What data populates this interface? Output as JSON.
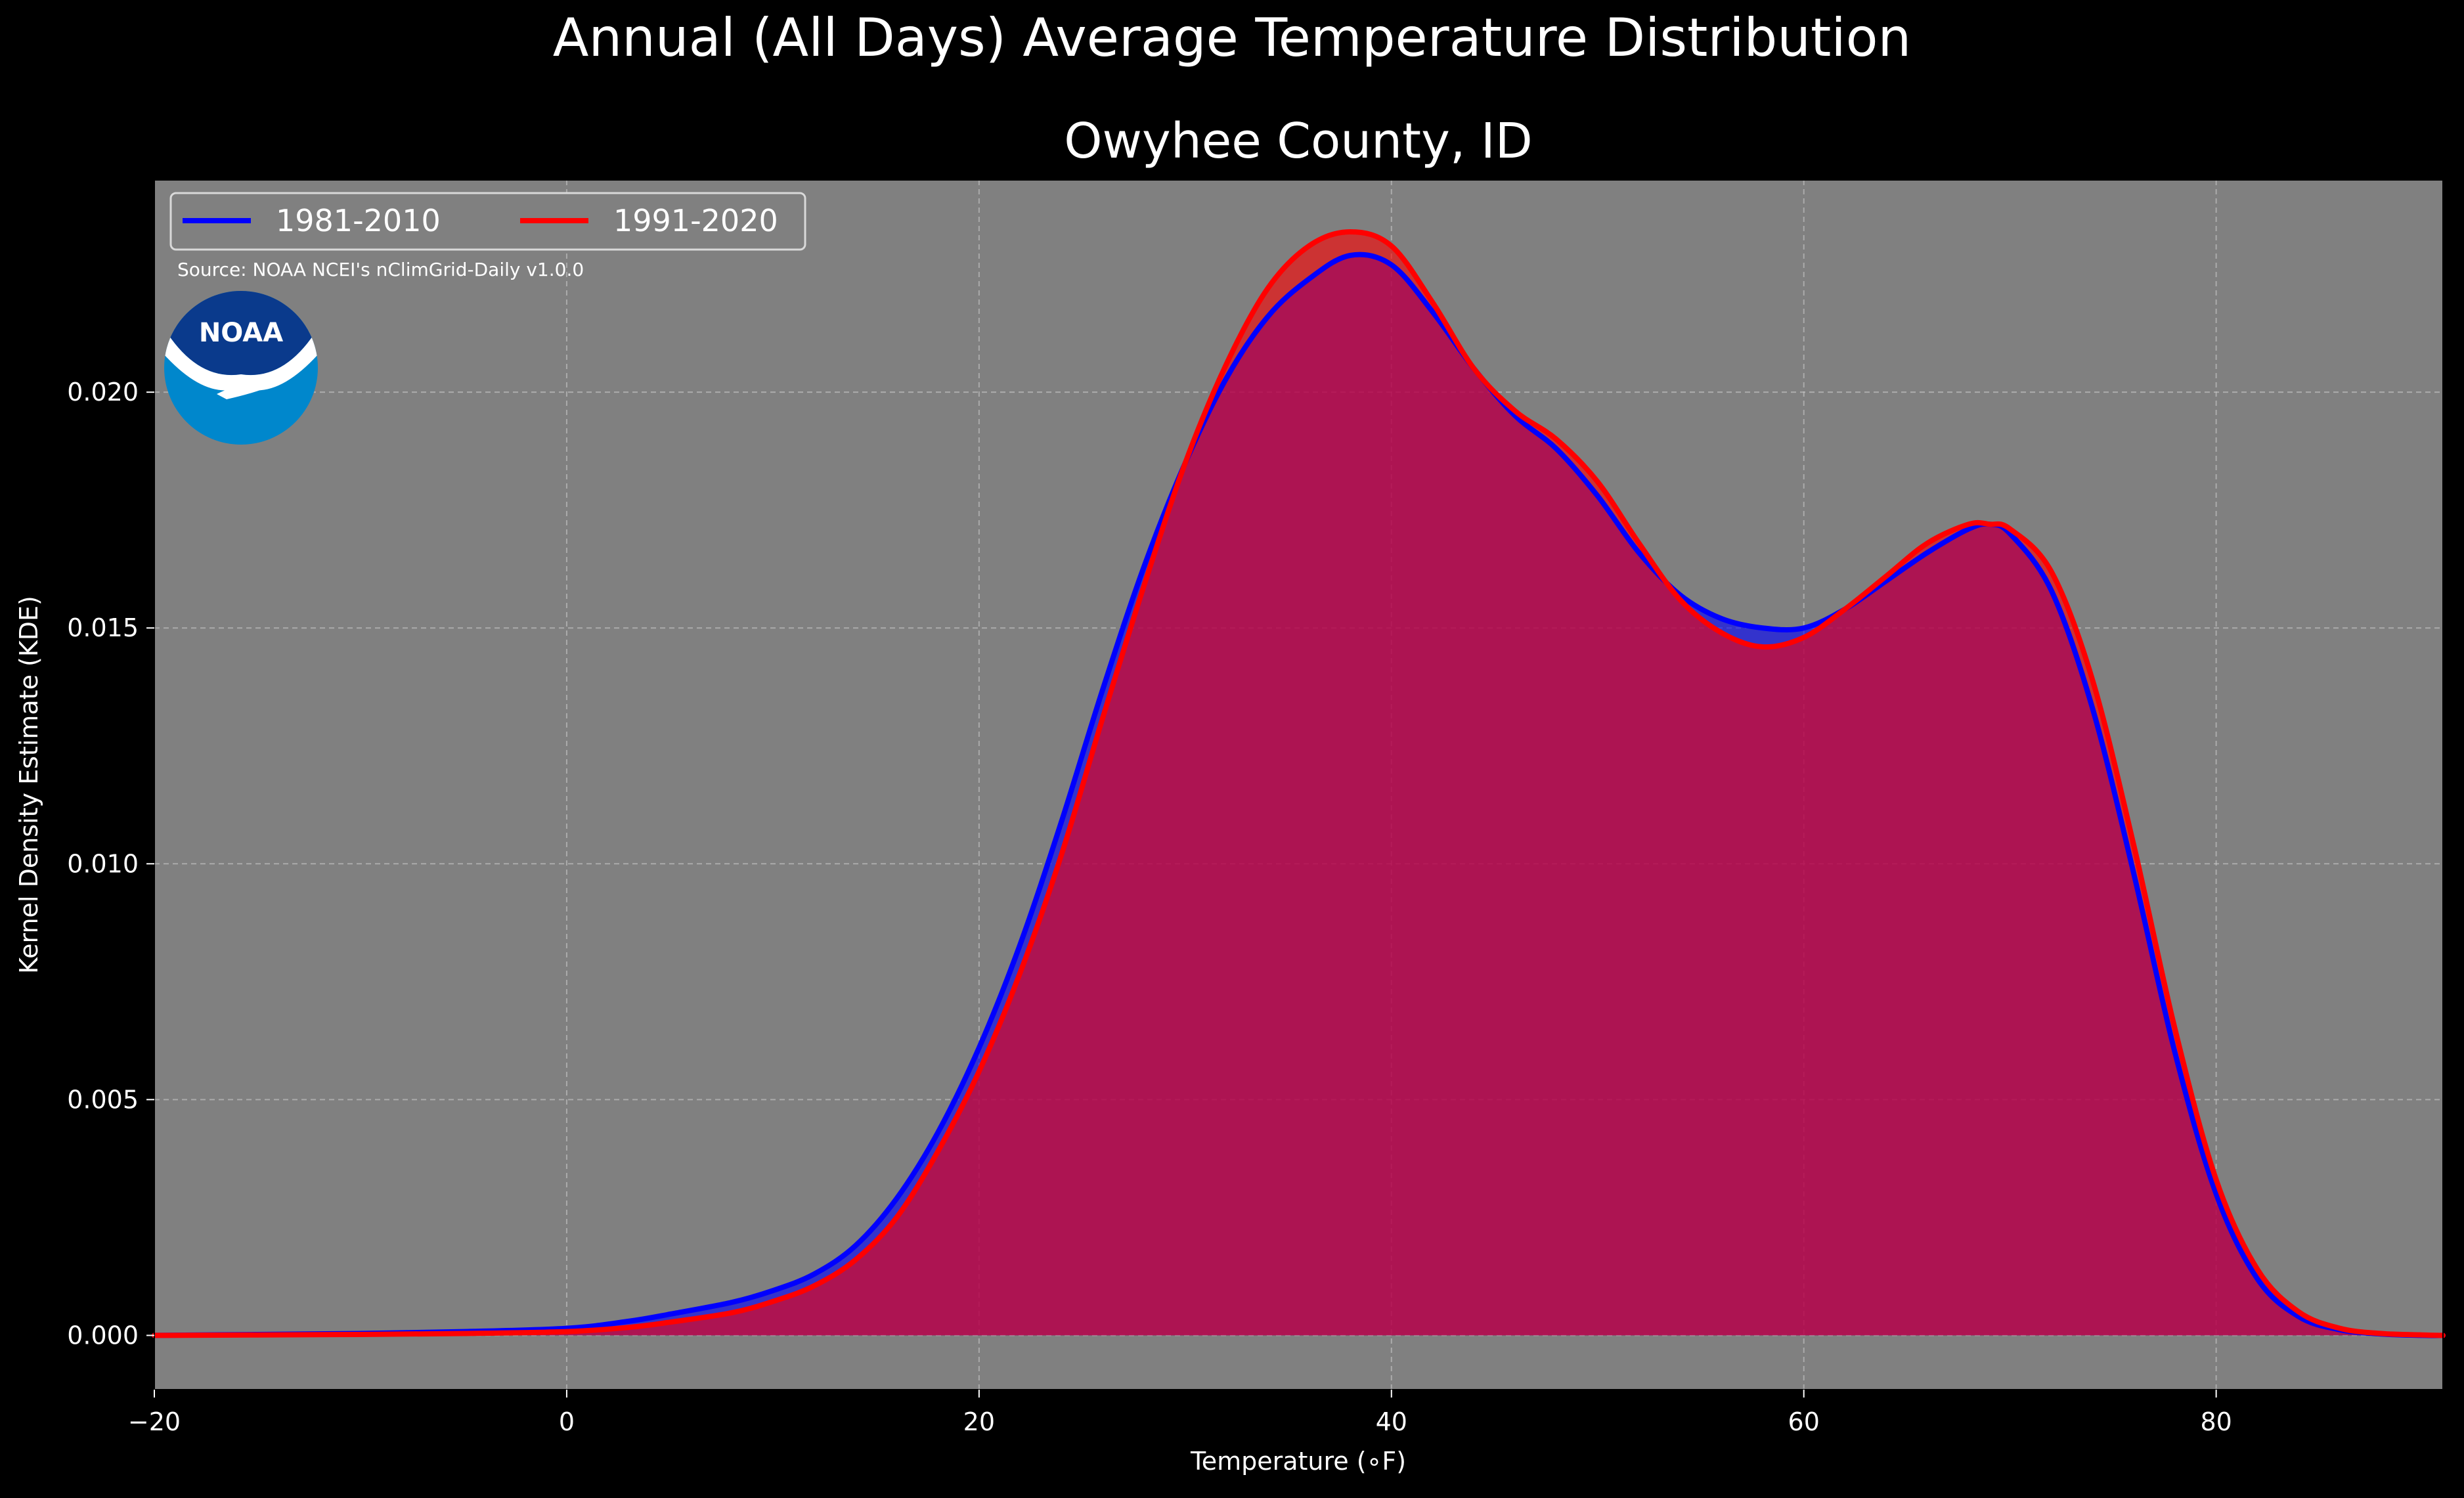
{
  "chart_data": {
    "type": "area",
    "suptitle": "Annual (All Days) Average Temperature Distribution",
    "title": "Owyhee County, ID",
    "xlabel": "Temperature (∘F)",
    "ylabel": "Kernel Density Estimate (KDE)",
    "source_note": "Source: NOAA NCEI's nClimGrid-Daily v1.0.0",
    "logo_text": "NOAA",
    "xlim": [
      -20,
      91
    ],
    "ylim": [
      -0.00115,
      0.0245
    ],
    "xticks": [
      -20,
      0,
      20,
      40,
      60,
      80
    ],
    "xtick_labels": [
      "−20",
      "0",
      "20",
      "40",
      "60",
      "80"
    ],
    "yticks": [
      0.0,
      0.005,
      0.01,
      0.015,
      0.02
    ],
    "ytick_labels": [
      "0.000",
      "0.005",
      "0.010",
      "0.015",
      "0.020"
    ],
    "grid": true,
    "legend_position": "top-left",
    "colors": {
      "background": "#000000",
      "plot_background": "#808080",
      "series_1981": "#0000ff",
      "series_1991": "#ff0000"
    },
    "series": [
      {
        "name": "1981-2010",
        "color": "#0000ff",
        "x": [
          -20,
          -15,
          -10,
          -5,
          0,
          3,
          5,
          8,
          10,
          12,
          14,
          16,
          18,
          20,
          22,
          24,
          26,
          28,
          30,
          32,
          34,
          36,
          38,
          40,
          42,
          44,
          46,
          48,
          50,
          52,
          54,
          56,
          58,
          60,
          62,
          64,
          66,
          68,
          69,
          70,
          72,
          74,
          76,
          78,
          80,
          82,
          84,
          86,
          88,
          90,
          91
        ],
        "y": [
          0.0,
          2e-05,
          4e-05,
          8e-05,
          0.00015,
          0.0003,
          0.00045,
          0.0007,
          0.00095,
          0.0013,
          0.0019,
          0.0029,
          0.0043,
          0.0061,
          0.0083,
          0.0109,
          0.0137,
          0.0163,
          0.0185,
          0.0203,
          0.0216,
          0.0224,
          0.0229,
          0.0227,
          0.0217,
          0.0205,
          0.0195,
          0.0188,
          0.0178,
          0.0166,
          0.0157,
          0.0152,
          0.015,
          0.015,
          0.0154,
          0.016,
          0.0166,
          0.0171,
          0.0172,
          0.017,
          0.0158,
          0.0133,
          0.0098,
          0.006,
          0.003,
          0.0012,
          0.0004,
          0.00012,
          3e-05,
          0.0,
          0.0
        ]
      },
      {
        "name": "1991-2020",
        "color": "#ff0000",
        "x": [
          -20,
          -15,
          -10,
          -5,
          0,
          3,
          5,
          8,
          10,
          12,
          14,
          16,
          18,
          20,
          22,
          24,
          26,
          28,
          30,
          32,
          34,
          36,
          38,
          40,
          42,
          44,
          46,
          48,
          50,
          52,
          54,
          56,
          58,
          60,
          62,
          64,
          66,
          68,
          69,
          70,
          72,
          74,
          76,
          78,
          80,
          82,
          84,
          86,
          88,
          90,
          91
        ],
        "y": [
          0.0,
          1e-05,
          2e-05,
          4e-05,
          8e-05,
          0.00017,
          0.00028,
          0.00048,
          0.00072,
          0.00105,
          0.0016,
          0.0025,
          0.0039,
          0.0056,
          0.0077,
          0.0102,
          0.0131,
          0.0159,
          0.0185,
          0.0206,
          0.0222,
          0.0231,
          0.0234,
          0.0231,
          0.0219,
          0.0205,
          0.0196,
          0.019,
          0.0181,
          0.0168,
          0.0156,
          0.0149,
          0.0146,
          0.0148,
          0.0154,
          0.0161,
          0.0168,
          0.0172,
          0.0172,
          0.0171,
          0.0162,
          0.0139,
          0.0104,
          0.0065,
          0.0033,
          0.0014,
          0.0005,
          0.00015,
          4e-05,
          1e-05,
          0.0
        ]
      }
    ]
  }
}
